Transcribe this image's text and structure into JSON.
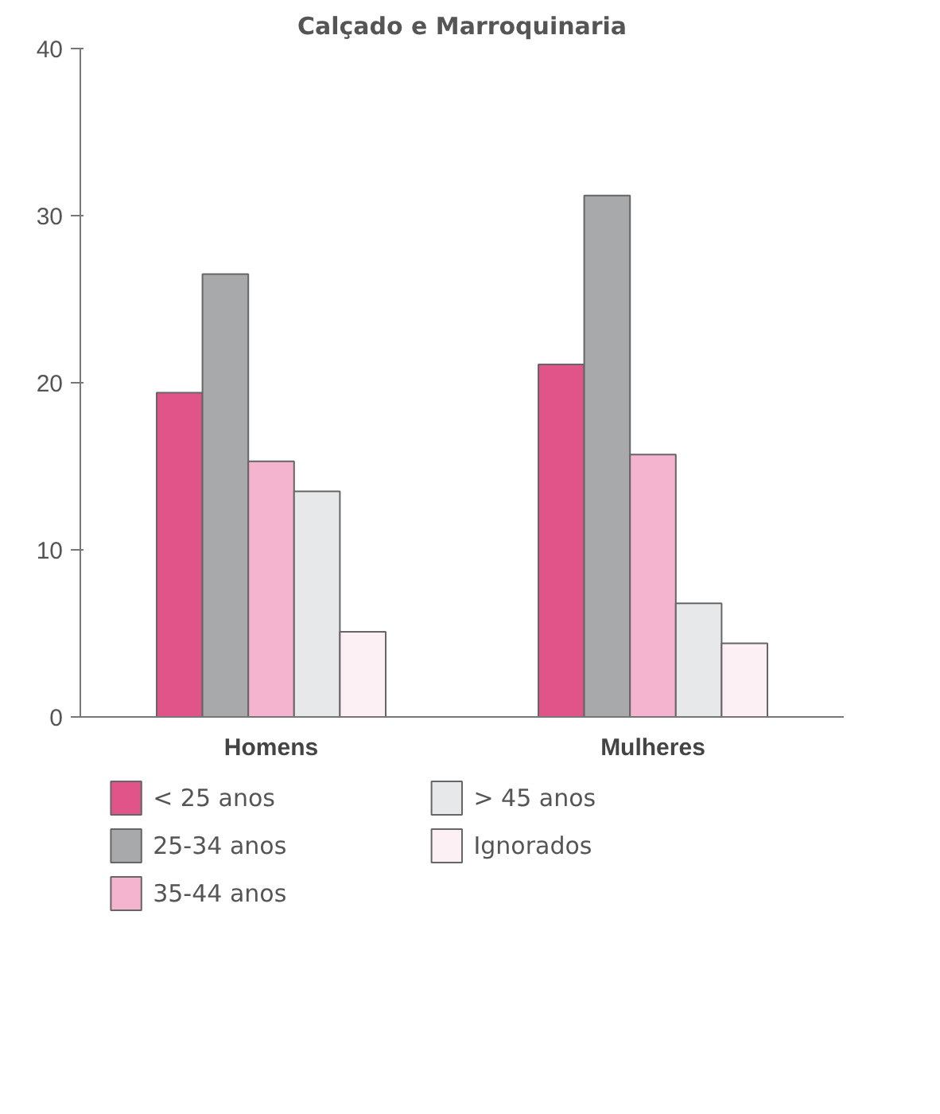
{
  "chart_data": {
    "type": "bar",
    "title": "Calçado e Marroquinaria",
    "categories": [
      "Homens",
      "Mulheres"
    ],
    "series": [
      {
        "name": "< 25 anos",
        "color": "#e0548a",
        "values": [
          19.4,
          21.1
        ]
      },
      {
        "name": "25-34 anos",
        "color": "#a8a9ab",
        "values": [
          26.5,
          31.2
        ]
      },
      {
        "name": "35-44 anos",
        "color": "#f4b3cf",
        "values": [
          15.3,
          15.7
        ]
      },
      {
        "name": "> 45 anos",
        "color": "#e6e8ea",
        "values": [
          13.5,
          6.8
        ]
      },
      {
        "name": "Ignorados",
        "color": "#fcf0f5",
        "values": [
          5.1,
          4.4
        ]
      }
    ],
    "ylim": [
      0,
      40
    ],
    "yticks": [
      0,
      10,
      20,
      30,
      40
    ],
    "grid": false,
    "legend": "bottom"
  }
}
